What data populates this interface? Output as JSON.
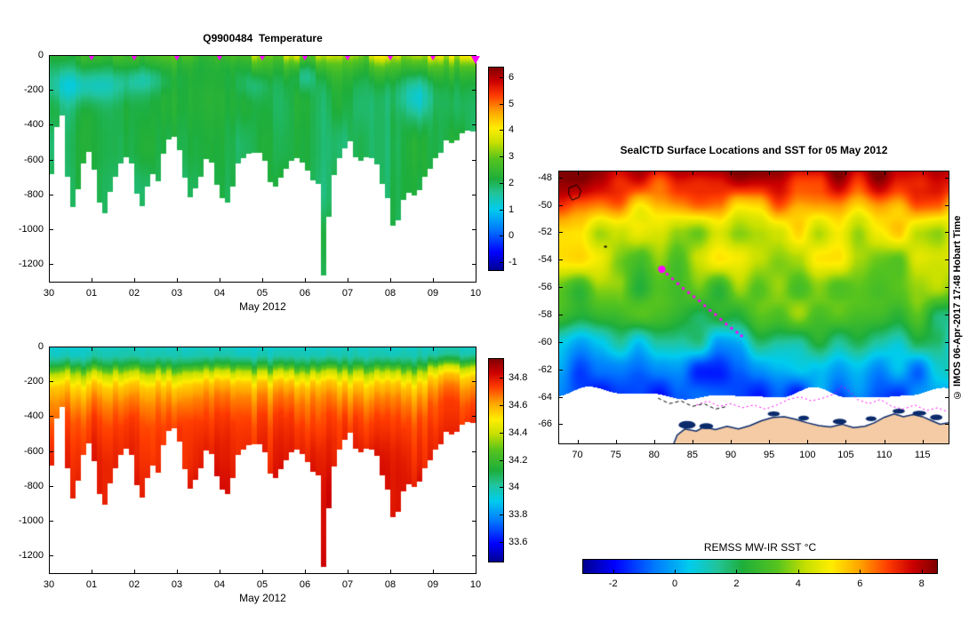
{
  "palette": {
    "jet_stops": [
      [
        0.0,
        "#00008f"
      ],
      [
        0.09,
        "#0000ff"
      ],
      [
        0.2,
        "#0077ff"
      ],
      [
        0.3,
        "#00ccee"
      ],
      [
        0.38,
        "#22c49a"
      ],
      [
        0.45,
        "#1eae3c"
      ],
      [
        0.55,
        "#57c41e"
      ],
      [
        0.63,
        "#c8e000"
      ],
      [
        0.7,
        "#ffee00"
      ],
      [
        0.78,
        "#ffa500"
      ],
      [
        0.86,
        "#ff3c00"
      ],
      [
        0.93,
        "#cc0000"
      ],
      [
        1.0,
        "#7f0000"
      ]
    ],
    "track_color": "#ff00ff",
    "land_color": "#f4cba4",
    "ice_shelf_color": "#0a2a6b",
    "background": "#ffffff"
  },
  "chart_data": [
    {
      "type": "heatmap",
      "id": "temperature",
      "title": "Q9900484  Temperature",
      "xlabel": "May 2012",
      "x_tick_labels": [
        "30",
        "01",
        "02",
        "03",
        "04",
        "05",
        "06",
        "07",
        "08",
        "09",
        "10"
      ],
      "y_ticks": [
        0,
        -200,
        -400,
        -600,
        -800,
        -1000,
        -1200
      ],
      "depth_range_m": [
        0,
        1300
      ],
      "colorbar": {
        "tick_labels": [
          "6",
          "5",
          "4",
          "3",
          "2",
          "1",
          "0",
          "-1"
        ],
        "range": [
          -1.3,
          6.4
        ],
        "units": "degC"
      },
      "interior_temp_degC": 2.05,
      "surface_warm_amp": [
        [
          0,
          0.5
        ],
        [
          0.8,
          0.4
        ],
        [
          1.6,
          0.5
        ],
        [
          2.4,
          0.55
        ],
        [
          3.0,
          0.8
        ],
        [
          3.6,
          0.5
        ],
        [
          4.2,
          0.7
        ],
        [
          4.7,
          1.3
        ],
        [
          5.2,
          1.0
        ],
        [
          5.7,
          1.5
        ],
        [
          6.2,
          1.1
        ],
        [
          6.7,
          1.4
        ],
        [
          7.2,
          1.0
        ],
        [
          7.7,
          1.8
        ],
        [
          8.2,
          1.4
        ],
        [
          8.7,
          1.7
        ],
        [
          9.2,
          2.0
        ],
        [
          9.6,
          1.7
        ],
        [
          10,
          1.8
        ]
      ],
      "cold_patches": [
        [
          0.85,
          170,
          1.0,
          0.85,
          95
        ],
        [
          2.25,
          140,
          0.5,
          0.55,
          75
        ],
        [
          4.8,
          170,
          0.35,
          0.4,
          80
        ],
        [
          6.0,
          115,
          0.28,
          0.65,
          85
        ],
        [
          8.55,
          230,
          0.5,
          0.8,
          130
        ]
      ],
      "profile_bottom_depth": [
        [
          0,
          690
        ],
        [
          0.12,
          700
        ],
        [
          0.2,
          340
        ],
        [
          0.35,
          340
        ],
        [
          0.45,
          760
        ],
        [
          0.6,
          850
        ],
        [
          0.75,
          640
        ],
        [
          0.9,
          560
        ],
        [
          1.05,
          610
        ],
        [
          1.2,
          860
        ],
        [
          1.35,
          880
        ],
        [
          1.5,
          740
        ],
        [
          1.65,
          640
        ],
        [
          1.8,
          580
        ],
        [
          1.95,
          640
        ],
        [
          2.1,
          870
        ],
        [
          2.25,
          840
        ],
        [
          2.4,
          650
        ],
        [
          2.55,
          700
        ],
        [
          2.7,
          560
        ],
        [
          2.85,
          450
        ],
        [
          3.0,
          440
        ],
        [
          3.15,
          700
        ],
        [
          3.3,
          800
        ],
        [
          3.45,
          770
        ],
        [
          3.6,
          640
        ],
        [
          3.75,
          600
        ],
        [
          3.9,
          690
        ],
        [
          4.05,
          850
        ],
        [
          4.2,
          880
        ],
        [
          4.35,
          640
        ],
        [
          4.5,
          620
        ],
        [
          4.65,
          580
        ],
        [
          4.8,
          545
        ],
        [
          4.95,
          560
        ],
        [
          5.1,
          640
        ],
        [
          5.25,
          750
        ],
        [
          5.4,
          680
        ],
        [
          5.55,
          640
        ],
        [
          5.7,
          590
        ],
        [
          5.85,
          610
        ],
        [
          6.0,
          620
        ],
        [
          6.15,
          690
        ],
        [
          6.3,
          760
        ],
        [
          6.42,
          1310
        ],
        [
          6.55,
          900
        ],
        [
          6.7,
          640
        ],
        [
          6.85,
          540
        ],
        [
          7.0,
          480
        ],
        [
          7.15,
          560
        ],
        [
          7.3,
          620
        ],
        [
          7.45,
          580
        ],
        [
          7.6,
          560
        ],
        [
          7.75,
          680
        ],
        [
          7.9,
          800
        ],
        [
          8.05,
          950
        ],
        [
          8.2,
          900
        ],
        [
          8.35,
          780
        ],
        [
          8.5,
          850
        ],
        [
          8.65,
          760
        ],
        [
          8.8,
          700
        ],
        [
          8.95,
          640
        ],
        [
          9.1,
          600
        ],
        [
          9.25,
          520
        ],
        [
          9.4,
          480
        ],
        [
          9.55,
          470
        ],
        [
          9.7,
          450
        ],
        [
          9.85,
          430
        ],
        [
          10.0,
          420
        ]
      ],
      "surface_marker_days": [
        1,
        2,
        3,
        4,
        5,
        6,
        7,
        8,
        9,
        10
      ]
    },
    {
      "type": "heatmap",
      "id": "salinity",
      "xlabel": "May 2012",
      "x_tick_labels": [
        "30",
        "01",
        "02",
        "03",
        "04",
        "05",
        "06",
        "07",
        "08",
        "09",
        "10"
      ],
      "y_ticks": [
        0,
        -200,
        -400,
        -600,
        -800,
        -1000,
        -1200
      ],
      "depth_range_m": [
        0,
        1300
      ],
      "colorbar": {
        "tick_labels": [
          "34.8",
          "34.6",
          "34.4",
          "34.2",
          "34",
          "33.8",
          "33.6"
        ],
        "range": [
          33.46,
          34.94
        ],
        "units": "psu"
      },
      "depth_profile": [
        [
          0,
          33.96
        ],
        [
          50,
          33.99
        ],
        [
          100,
          34.12
        ],
        [
          150,
          34.38
        ],
        [
          220,
          34.55
        ],
        [
          300,
          34.64
        ],
        [
          420,
          34.72
        ],
        [
          600,
          34.77
        ],
        [
          850,
          34.81
        ],
        [
          1400,
          34.85
        ]
      ],
      "shares_profile_bottoms_with": "temperature"
    },
    {
      "type": "map-heatmap",
      "id": "sst_map",
      "title": "SealCTD Surface Locations and SST for 05 May 2012",
      "watermark": "© IMOS 06-Apr-2017 17:48 Hobart Time",
      "lon_ticks": [
        70,
        75,
        80,
        85,
        90,
        95,
        100,
        105,
        110,
        115
      ],
      "lat_ticks": [
        -48,
        -50,
        -52,
        -54,
        -56,
        -58,
        -60,
        -62,
        -64,
        -66
      ],
      "lon_range": [
        67.5,
        118.4
      ],
      "lat_range": [
        -67.4,
        -47.5
      ],
      "colorbar": {
        "label": "REMSS MW-IR SST °C",
        "tick_labels": [
          "-2",
          "0",
          "2",
          "4",
          "6",
          "8"
        ],
        "range": [
          -3,
          8.5
        ]
      },
      "sst_vs_lat": [
        [
          -67.5,
          -1.5
        ],
        [
          -64.5,
          -1.4
        ],
        [
          -63,
          -0.8
        ],
        [
          -61.5,
          -0.1
        ],
        [
          -60,
          1.0
        ],
        [
          -58.5,
          2.1
        ],
        [
          -57,
          2.9
        ],
        [
          -55,
          3.4
        ],
        [
          -53,
          4.0
        ],
        [
          -52,
          4.4
        ],
        [
          -51,
          5.2
        ],
        [
          -50,
          6.3
        ],
        [
          -49,
          7.4
        ],
        [
          -48,
          8.0
        ],
        [
          -47.5,
          8.3
        ]
      ],
      "ice_edge_lat_base": -62.8,
      "seal_current_position": [
        81.0,
        -54.7
      ],
      "seal_track": [
        [
          81.7,
          -55.05
        ],
        [
          82.4,
          -55.4
        ],
        [
          83.1,
          -55.75
        ],
        [
          83.8,
          -56.1
        ],
        [
          84.5,
          -56.4
        ],
        [
          85.2,
          -56.7
        ],
        [
          85.9,
          -57.0
        ],
        [
          86.6,
          -57.35
        ],
        [
          87.3,
          -57.7
        ],
        [
          88.0,
          -58.0
        ],
        [
          88.7,
          -58.35
        ],
        [
          89.4,
          -58.7
        ],
        [
          90.1,
          -59.0
        ],
        [
          90.8,
          -59.3
        ],
        [
          91.4,
          -59.55
        ]
      ],
      "ice_edge_contour_magenta": [
        [
          85.5,
          -64.6
        ],
        [
          87,
          -64.3
        ],
        [
          88.5,
          -64.7
        ],
        [
          90,
          -64.5
        ],
        [
          91.5,
          -64.8
        ],
        [
          93,
          -64.6
        ],
        [
          94.5,
          -64.9
        ],
        [
          96,
          -64.6
        ],
        [
          97.5,
          -64.2
        ],
        [
          99,
          -64.0
        ],
        [
          100.5,
          -64.3
        ],
        [
          102,
          -64.1
        ],
        [
          103.5,
          -63.8
        ],
        [
          104.5,
          -63.2
        ],
        [
          105.5,
          -63.6
        ],
        [
          106.5,
          -64.2
        ],
        [
          108,
          -64.5
        ],
        [
          109.5,
          -64.2
        ],
        [
          111,
          -64.7
        ],
        [
          112.5,
          -64.9
        ],
        [
          114,
          -64.6
        ],
        [
          115.5,
          -65.0
        ],
        [
          117,
          -64.8
        ],
        [
          118.3,
          -65.1
        ]
      ],
      "contour_black_dashed": [
        [
          80.5,
          -64.1
        ],
        [
          82,
          -64.5
        ],
        [
          83.5,
          -64.3
        ],
        [
          85,
          -64.7
        ],
        [
          86.5,
          -64.5
        ],
        [
          88,
          -64.9
        ],
        [
          89.5,
          -64.7
        ]
      ],
      "coastline": [
        [
          82.5,
          -67.5
        ],
        [
          83.0,
          -66.8
        ],
        [
          84.0,
          -66.35
        ],
        [
          85.5,
          -66.5
        ],
        [
          86.5,
          -66.2
        ],
        [
          88.0,
          -66.4
        ],
        [
          89.5,
          -66.15
        ],
        [
          91.0,
          -66.35
        ],
        [
          92.5,
          -66.1
        ],
        [
          94.0,
          -65.75
        ],
        [
          95.5,
          -65.5
        ],
        [
          97.0,
          -65.45
        ],
        [
          98.5,
          -65.65
        ],
        [
          100.0,
          -65.9
        ],
        [
          101.5,
          -66.1
        ],
        [
          103.0,
          -66.2
        ],
        [
          104.5,
          -66.0
        ],
        [
          106.0,
          -66.25
        ],
        [
          107.5,
          -66.15
        ],
        [
          108.7,
          -65.9
        ],
        [
          110.0,
          -65.5
        ],
        [
          111.3,
          -65.25
        ],
        [
          112.5,
          -65.45
        ],
        [
          113.8,
          -65.3
        ],
        [
          115.0,
          -65.45
        ],
        [
          116.2,
          -65.75
        ],
        [
          117.3,
          -66.0
        ],
        [
          118.4,
          -65.9
        ]
      ],
      "ice_shelf_blobs": [
        [
          84.3,
          -66.05,
          1.1,
          0.28
        ],
        [
          86.8,
          -66.15,
          0.9,
          0.22
        ],
        [
          95.6,
          -65.25,
          0.8,
          0.18
        ],
        [
          99.5,
          -65.55,
          0.7,
          0.18
        ],
        [
          104.2,
          -65.8,
          0.9,
          0.2
        ],
        [
          108.3,
          -65.6,
          0.7,
          0.18
        ],
        [
          111.9,
          -65.05,
          0.8,
          0.18
        ],
        [
          114.6,
          -65.2,
          0.9,
          0.18
        ],
        [
          116.8,
          -65.5,
          0.8,
          0.2
        ]
      ],
      "islands": {
        "kerguelen": [
          [
            68.9,
            -48.75
          ],
          [
            69.9,
            -48.55
          ],
          [
            70.45,
            -48.95
          ],
          [
            70.2,
            -49.45
          ],
          [
            69.3,
            -49.65
          ],
          [
            68.85,
            -49.2
          ]
        ],
        "heard": [
          73.6,
          -53.05
        ]
      }
    }
  ]
}
